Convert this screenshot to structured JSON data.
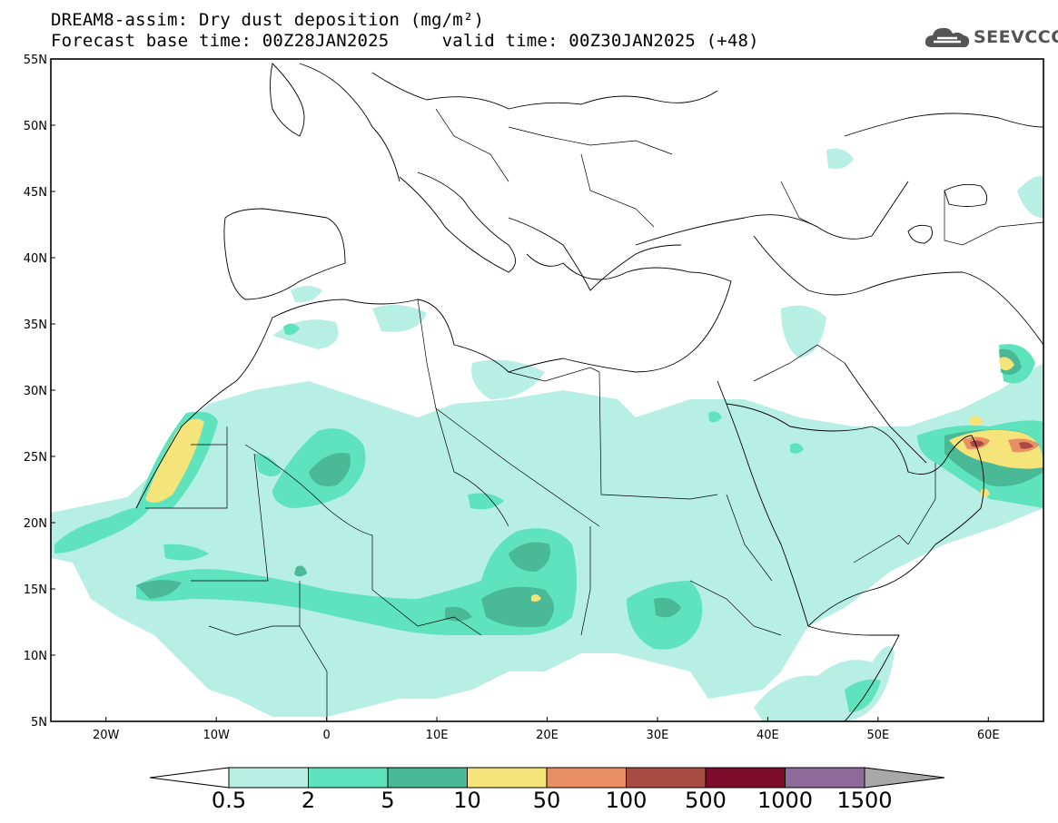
{
  "title": {
    "line1": "DREAM8-assim: Dry dust deposition (mg/m²)",
    "line2": "Forecast base time: 00Z28JAN2025     valid time: 00Z30JAN2025 (+48)"
  },
  "logo": {
    "text": "SEEVCCC",
    "icon": "cloud-icon"
  },
  "map": {
    "lon_range": [
      -25,
      65
    ],
    "lat_range": [
      5,
      55
    ],
    "lat_ticks": [
      "55N",
      "50N",
      "45N",
      "40N",
      "35N",
      "30N",
      "25N",
      "20N",
      "15N",
      "10N",
      "5N"
    ],
    "lon_ticks": [
      "20W",
      "10W",
      "0",
      "10E",
      "20E",
      "30E",
      "40E",
      "50E",
      "60E"
    ]
  },
  "legend": {
    "labels": [
      "0.5",
      "2",
      "5",
      "10",
      "50",
      "100",
      "500",
      "1000",
      "1500"
    ],
    "colors": [
      "#b8efe4",
      "#5fe3bd",
      "#4ab996",
      "#f4e47a",
      "#e98f65",
      "#a84b42",
      "#7d0b2c",
      "#8e6a9a",
      "#a8a8a8"
    ]
  }
}
